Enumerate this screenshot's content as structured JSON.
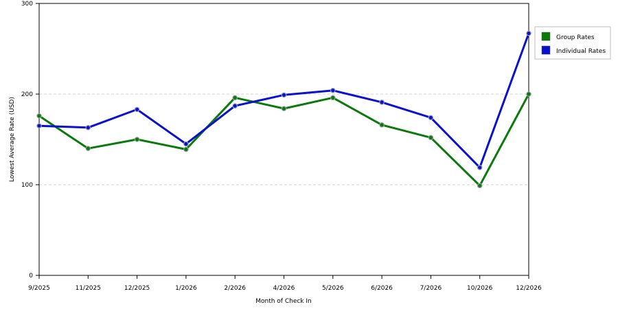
{
  "chart_data": {
    "type": "line",
    "title": "",
    "xlabel": "Month of Check In",
    "ylabel": "Lowest Average Rate (USD)",
    "categories": [
      "9/2025",
      "11/2025",
      "12/2025",
      "1/2026",
      "2/2026",
      "4/2026",
      "5/2026",
      "6/2026",
      "7/2026",
      "10/2026",
      "12/2026"
    ],
    "ylim": [
      0,
      300
    ],
    "yticks": [
      0,
      100,
      200,
      300
    ],
    "grid": "horizontal dashed",
    "legend_position": "right",
    "series": [
      {
        "name": "Group Rates",
        "color": "#0a7a0a",
        "values": [
          176,
          140,
          150,
          139,
          196,
          184,
          196,
          166,
          152,
          99,
          200
        ]
      },
      {
        "name": "Individual Rates",
        "color": "#0a10d0",
        "values": [
          165,
          163,
          183,
          145,
          187,
          199,
          204,
          191,
          174,
          119,
          267
        ]
      }
    ]
  }
}
